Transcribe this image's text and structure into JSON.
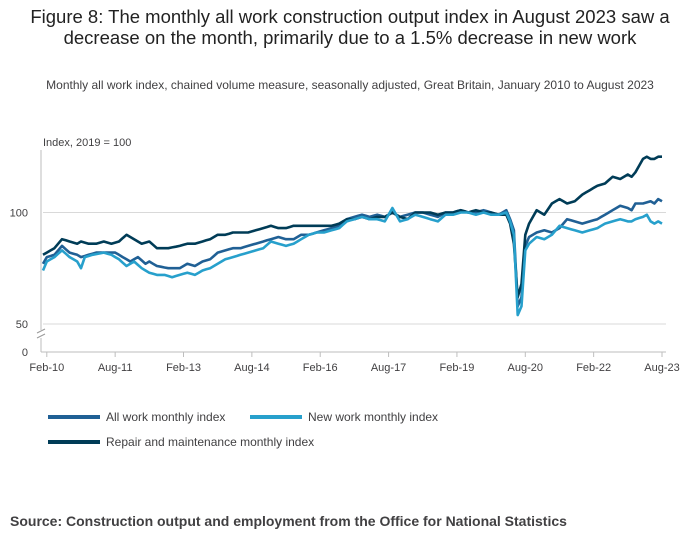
{
  "title": "Figure 8: The monthly all work construction output index in August 2023 saw a decrease on the month, primarily due to a 1.5% decrease in new work",
  "subtitle": "Monthly all work index, chained volume measure, seasonally adjusted, Great Britain, January 2010 to August 2023",
  "source": "Source: Construction output and employment from the Office for National Statistics",
  "chart_data": {
    "type": "line",
    "ylabel": "Index, 2019 = 100",
    "ylim": [
      0,
      128
    ],
    "axis_break": "between 0 and 50",
    "yticks": [
      0,
      50,
      100
    ],
    "x_start": "Jan-10",
    "x_end": "Aug-23",
    "xtick_labels": [
      "Feb-10",
      "Aug-11",
      "Feb-13",
      "Aug-14",
      "Feb-16",
      "Aug-17",
      "Feb-19",
      "Aug-20",
      "Feb-22",
      "Aug-23"
    ],
    "xtick_index": [
      1,
      19,
      37,
      55,
      73,
      91,
      109,
      127,
      145,
      163
    ],
    "anchors_note": "values listed at monthly indices (0 = Jan-10); intermediate months linearly interpolated",
    "series": [
      {
        "name": "All work monthly index",
        "color": "#206095",
        "anchors": [
          [
            0,
            77
          ],
          [
            1,
            80
          ],
          [
            3,
            81
          ],
          [
            5,
            85
          ],
          [
            7,
            82
          ],
          [
            9,
            81
          ],
          [
            10,
            80
          ],
          [
            12,
            81
          ],
          [
            14,
            82
          ],
          [
            17,
            82
          ],
          [
            19,
            82
          ],
          [
            21,
            80
          ],
          [
            23,
            78
          ],
          [
            25,
            80
          ],
          [
            27,
            77
          ],
          [
            28,
            78
          ],
          [
            30,
            76
          ],
          [
            33,
            75
          ],
          [
            36,
            75
          ],
          [
            38,
            77
          ],
          [
            40,
            76
          ],
          [
            42,
            78
          ],
          [
            44,
            79
          ],
          [
            46,
            82
          ],
          [
            48,
            83
          ],
          [
            50,
            84
          ],
          [
            52,
            84
          ],
          [
            54,
            85
          ],
          [
            56,
            86
          ],
          [
            58,
            87
          ],
          [
            60,
            88
          ],
          [
            62,
            89
          ],
          [
            64,
            88
          ],
          [
            66,
            88
          ],
          [
            68,
            90
          ],
          [
            70,
            90
          ],
          [
            72,
            91
          ],
          [
            74,
            92
          ],
          [
            76,
            93
          ],
          [
            78,
            94
          ],
          [
            80,
            97
          ],
          [
            82,
            98
          ],
          [
            84,
            99
          ],
          [
            86,
            98
          ],
          [
            88,
            99
          ],
          [
            90,
            98
          ],
          [
            92,
            100
          ],
          [
            94,
            98
          ],
          [
            96,
            99
          ],
          [
            98,
            100
          ],
          [
            100,
            100
          ],
          [
            102,
            99
          ],
          [
            104,
            98
          ],
          [
            106,
            100
          ],
          [
            108,
            100
          ],
          [
            110,
            101
          ],
          [
            112,
            100
          ],
          [
            114,
            100
          ],
          [
            116,
            101
          ],
          [
            118,
            100
          ],
          [
            120,
            99
          ],
          [
            122,
            101
          ],
          [
            123,
            97
          ],
          [
            124,
            92
          ],
          [
            125,
            58
          ],
          [
            126,
            62
          ],
          [
            127,
            85
          ],
          [
            128,
            89
          ],
          [
            130,
            91
          ],
          [
            132,
            92
          ],
          [
            134,
            91
          ],
          [
            136,
            93
          ],
          [
            138,
            97
          ],
          [
            140,
            96
          ],
          [
            142,
            95
          ],
          [
            144,
            96
          ],
          [
            146,
            97
          ],
          [
            148,
            99
          ],
          [
            150,
            101
          ],
          [
            152,
            103
          ],
          [
            154,
            102
          ],
          [
            155,
            101
          ],
          [
            156,
            104
          ],
          [
            158,
            104
          ],
          [
            160,
            105
          ],
          [
            161,
            104
          ],
          [
            162,
            106
          ],
          [
            163,
            105
          ]
        ]
      },
      {
        "name": "New work monthly index",
        "color": "#27a0cc",
        "anchors": [
          [
            0,
            74
          ],
          [
            1,
            78
          ],
          [
            3,
            80
          ],
          [
            5,
            83
          ],
          [
            7,
            80
          ],
          [
            9,
            78
          ],
          [
            10,
            75
          ],
          [
            11,
            80
          ],
          [
            13,
            81
          ],
          [
            16,
            82
          ],
          [
            18,
            81
          ],
          [
            20,
            79
          ],
          [
            22,
            76
          ],
          [
            24,
            78
          ],
          [
            26,
            75
          ],
          [
            28,
            73
          ],
          [
            30,
            72
          ],
          [
            32,
            72
          ],
          [
            34,
            71
          ],
          [
            36,
            72
          ],
          [
            38,
            73
          ],
          [
            40,
            72
          ],
          [
            42,
            74
          ],
          [
            44,
            75
          ],
          [
            46,
            77
          ],
          [
            48,
            79
          ],
          [
            50,
            80
          ],
          [
            52,
            81
          ],
          [
            54,
            82
          ],
          [
            56,
            83
          ],
          [
            58,
            84
          ],
          [
            60,
            87
          ],
          [
            62,
            86
          ],
          [
            64,
            85
          ],
          [
            66,
            86
          ],
          [
            68,
            88
          ],
          [
            70,
            90
          ],
          [
            72,
            91
          ],
          [
            74,
            91
          ],
          [
            76,
            92
          ],
          [
            78,
            93
          ],
          [
            80,
            96
          ],
          [
            82,
            97
          ],
          [
            84,
            98
          ],
          [
            86,
            97
          ],
          [
            88,
            97
          ],
          [
            90,
            96
          ],
          [
            92,
            102
          ],
          [
            94,
            96
          ],
          [
            96,
            97
          ],
          [
            98,
            99
          ],
          [
            100,
            98
          ],
          [
            102,
            97
          ],
          [
            104,
            96
          ],
          [
            106,
            99
          ],
          [
            108,
            99
          ],
          [
            110,
            100
          ],
          [
            112,
            100
          ],
          [
            114,
            99
          ],
          [
            116,
            100
          ],
          [
            118,
            99
          ],
          [
            120,
            99
          ],
          [
            122,
            100
          ],
          [
            123,
            96
          ],
          [
            124,
            90
          ],
          [
            125,
            54
          ],
          [
            126,
            58
          ],
          [
            127,
            83
          ],
          [
            128,
            86
          ],
          [
            130,
            89
          ],
          [
            132,
            88
          ],
          [
            134,
            90
          ],
          [
            136,
            94
          ],
          [
            138,
            93
          ],
          [
            140,
            92
          ],
          [
            142,
            91
          ],
          [
            144,
            92
          ],
          [
            146,
            93
          ],
          [
            148,
            95
          ],
          [
            150,
            96
          ],
          [
            152,
            97
          ],
          [
            154,
            96
          ],
          [
            155,
            96
          ],
          [
            156,
            97
          ],
          [
            158,
            98
          ],
          [
            159,
            99
          ],
          [
            160,
            96
          ],
          [
            161,
            95
          ],
          [
            162,
            96
          ],
          [
            163,
            95
          ]
        ]
      },
      {
        "name": "Repair and maintenance monthly index",
        "color": "#003c57",
        "anchors": [
          [
            0,
            81
          ],
          [
            1,
            82
          ],
          [
            3,
            84
          ],
          [
            5,
            88
          ],
          [
            7,
            87
          ],
          [
            9,
            86
          ],
          [
            10,
            87
          ],
          [
            12,
            86
          ],
          [
            14,
            86
          ],
          [
            16,
            87
          ],
          [
            18,
            86
          ],
          [
            20,
            87
          ],
          [
            22,
            90
          ],
          [
            24,
            88
          ],
          [
            26,
            86
          ],
          [
            28,
            87
          ],
          [
            30,
            84
          ],
          [
            33,
            84
          ],
          [
            36,
            85
          ],
          [
            38,
            86
          ],
          [
            40,
            86
          ],
          [
            42,
            87
          ],
          [
            44,
            88
          ],
          [
            46,
            90
          ],
          [
            48,
            90
          ],
          [
            50,
            91
          ],
          [
            52,
            91
          ],
          [
            54,
            91
          ],
          [
            56,
            92
          ],
          [
            58,
            93
          ],
          [
            60,
            94
          ],
          [
            62,
            93
          ],
          [
            64,
            93
          ],
          [
            66,
            94
          ],
          [
            68,
            94
          ],
          [
            70,
            94
          ],
          [
            72,
            94
          ],
          [
            74,
            94
          ],
          [
            76,
            94
          ],
          [
            78,
            95
          ],
          [
            80,
            97
          ],
          [
            82,
            97
          ],
          [
            84,
            98
          ],
          [
            86,
            97
          ],
          [
            88,
            98
          ],
          [
            90,
            98
          ],
          [
            92,
            100
          ],
          [
            94,
            98
          ],
          [
            96,
            97
          ],
          [
            98,
            100
          ],
          [
            100,
            100
          ],
          [
            102,
            100
          ],
          [
            104,
            99
          ],
          [
            106,
            100
          ],
          [
            108,
            100
          ],
          [
            110,
            101
          ],
          [
            112,
            100
          ],
          [
            114,
            101
          ],
          [
            116,
            100
          ],
          [
            118,
            100
          ],
          [
            120,
            99
          ],
          [
            122,
            99
          ],
          [
            123,
            95
          ],
          [
            124,
            86
          ],
          [
            125,
            62
          ],
          [
            126,
            68
          ],
          [
            127,
            90
          ],
          [
            128,
            95
          ],
          [
            130,
            101
          ],
          [
            132,
            99
          ],
          [
            134,
            104
          ],
          [
            136,
            106
          ],
          [
            138,
            104
          ],
          [
            140,
            105
          ],
          [
            142,
            108
          ],
          [
            144,
            110
          ],
          [
            146,
            112
          ],
          [
            148,
            113
          ],
          [
            150,
            116
          ],
          [
            152,
            115
          ],
          [
            154,
            117
          ],
          [
            155,
            116
          ],
          [
            156,
            118
          ],
          [
            158,
            124
          ],
          [
            159,
            125
          ],
          [
            160,
            124
          ],
          [
            161,
            124
          ],
          [
            162,
            125
          ],
          [
            163,
            125
          ]
        ]
      }
    ]
  },
  "legend": {
    "items": [
      {
        "label": "All work monthly index",
        "color": "#206095"
      },
      {
        "label": "New work monthly index",
        "color": "#27a0cc"
      },
      {
        "label": "Repair and maintenance monthly index",
        "color": "#003c57"
      }
    ]
  }
}
